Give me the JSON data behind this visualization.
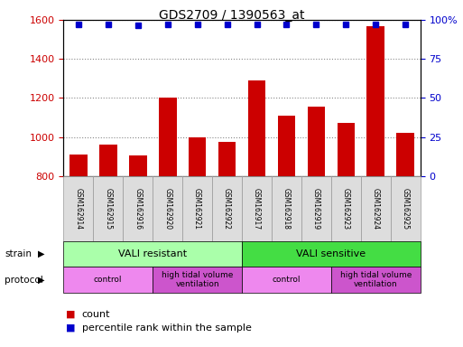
{
  "title": "GDS2709 / 1390563_at",
  "samples": [
    "GSM162914",
    "GSM162915",
    "GSM162916",
    "GSM162920",
    "GSM162921",
    "GSM162922",
    "GSM162917",
    "GSM162918",
    "GSM162919",
    "GSM162923",
    "GSM162924",
    "GSM162925"
  ],
  "counts": [
    910,
    960,
    905,
    1200,
    1000,
    975,
    1290,
    1110,
    1155,
    1070,
    1565,
    1020
  ],
  "percentile_ranks": [
    97,
    97,
    96,
    97,
    97,
    97,
    97,
    97,
    97,
    97,
    97,
    97
  ],
  "ylim_left": [
    800,
    1600
  ],
  "ylim_right": [
    0,
    100
  ],
  "yticks_left": [
    800,
    1000,
    1200,
    1400,
    1600
  ],
  "yticks_right": [
    0,
    25,
    50,
    75,
    100
  ],
  "bar_color": "#cc0000",
  "dot_color": "#0000cc",
  "strain_groups": [
    {
      "label": "VALI resistant",
      "start": 0,
      "end": 6,
      "color": "#aaffaa"
    },
    {
      "label": "VALI sensitive",
      "start": 6,
      "end": 12,
      "color": "#44dd44"
    }
  ],
  "protocol_groups": [
    {
      "label": "control",
      "start": 0,
      "end": 3,
      "color": "#ee88ee"
    },
    {
      "label": "high tidal volume\nventilation",
      "start": 3,
      "end": 6,
      "color": "#cc55cc"
    },
    {
      "label": "control",
      "start": 6,
      "end": 9,
      "color": "#ee88ee"
    },
    {
      "label": "high tidal volume\nventilation",
      "start": 9,
      "end": 12,
      "color": "#cc55cc"
    }
  ],
  "legend_count_color": "#cc0000",
  "legend_pct_color": "#0000cc",
  "left_axis_color": "#cc0000",
  "right_axis_color": "#0000cc",
  "label_box_color": "#dddddd",
  "label_box_edge": "#999999"
}
